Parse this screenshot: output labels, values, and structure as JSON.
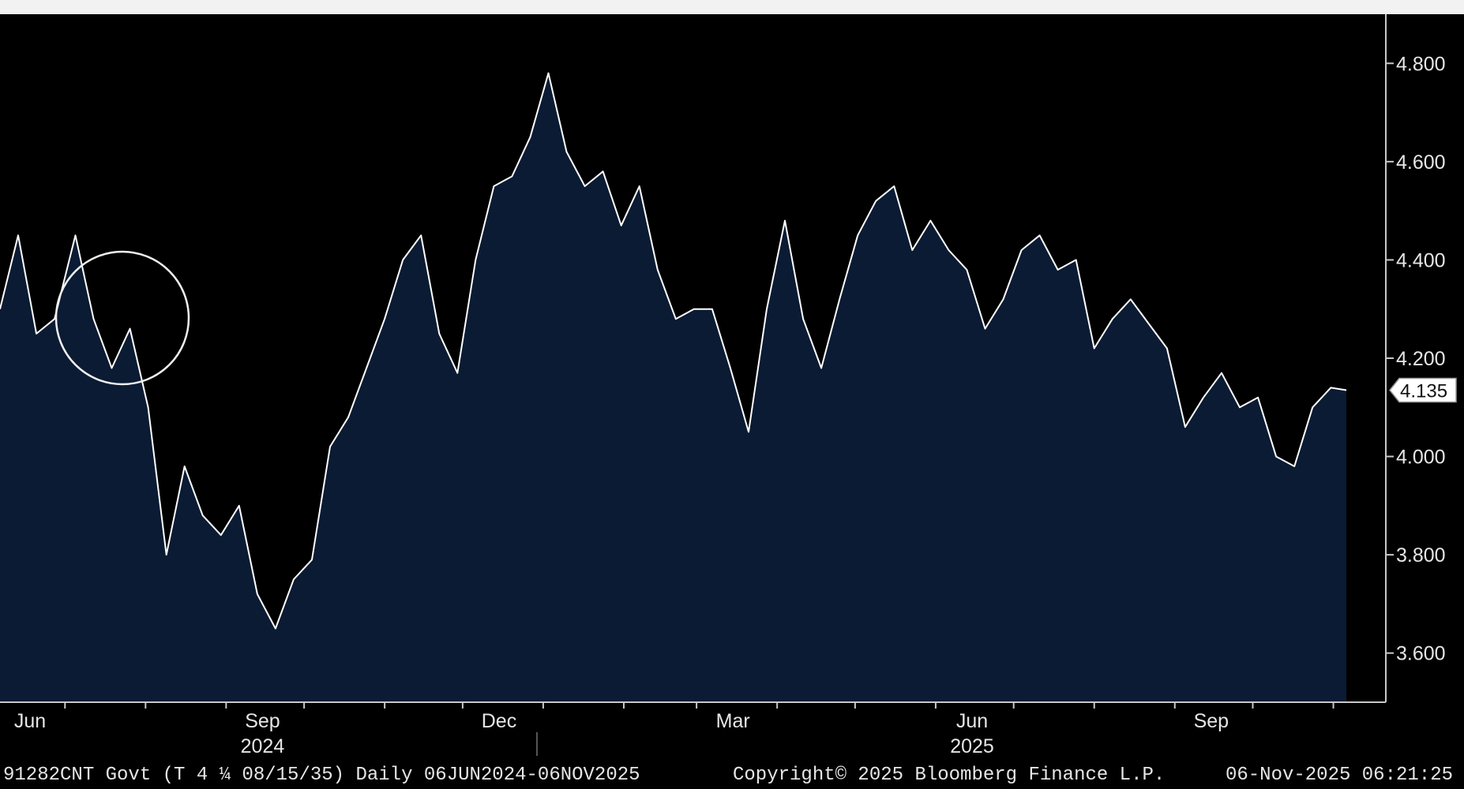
{
  "chart_data": {
    "type": "area",
    "x_start": "06JUN2024",
    "x_end": "06NOV2025",
    "ylim": [
      3.5,
      4.9
    ],
    "y_ticks": [
      "3.600",
      "3.800",
      "4.000",
      "4.200",
      "4.400",
      "4.600",
      "4.800"
    ],
    "month_ticks": [
      "Jun",
      "Sep",
      "Dec",
      "Mar",
      "Jun",
      "Sep"
    ],
    "year_labels": [
      "2024",
      "2025"
    ],
    "grid": false,
    "colors": {
      "background": "#000000",
      "area_fill": "#0b1b34",
      "line": "#ffffff",
      "text": "#e6e6e6",
      "last_label_bg": "#ffffff"
    },
    "last_value": "4.135",
    "series": [
      {
        "x": [
          "2024-06-06",
          "2024-06-13",
          "2024-06-20",
          "2024-06-27",
          "2024-07-05",
          "2024-07-12",
          "2024-07-19",
          "2024-07-26",
          "2024-08-02",
          "2024-08-09",
          "2024-08-16",
          "2024-08-23",
          "2024-08-30",
          "2024-09-06",
          "2024-09-13",
          "2024-09-20",
          "2024-09-27",
          "2024-10-04",
          "2024-10-11",
          "2024-10-18",
          "2024-10-25",
          "2024-11-01",
          "2024-11-08",
          "2024-11-15",
          "2024-11-22",
          "2024-11-29",
          "2024-12-06",
          "2024-12-13",
          "2024-12-20",
          "2024-12-27",
          "2025-01-03",
          "2025-01-10",
          "2025-01-17",
          "2025-01-24",
          "2025-01-31",
          "2025-02-07",
          "2025-02-14",
          "2025-02-21",
          "2025-02-28",
          "2025-03-07",
          "2025-03-14",
          "2025-03-21",
          "2025-03-28",
          "2025-04-04",
          "2025-04-11",
          "2025-04-18",
          "2025-04-25",
          "2025-05-02",
          "2025-05-09",
          "2025-05-16",
          "2025-05-23",
          "2025-05-30",
          "2025-06-06",
          "2025-06-13",
          "2025-06-20",
          "2025-06-27",
          "2025-07-04",
          "2025-07-11",
          "2025-07-18",
          "2025-07-25",
          "2025-08-01",
          "2025-08-08",
          "2025-08-15",
          "2025-08-22",
          "2025-08-29",
          "2025-09-05",
          "2025-09-12",
          "2025-09-19",
          "2025-09-26",
          "2025-10-03",
          "2025-10-10",
          "2025-10-17",
          "2025-10-24",
          "2025-10-31",
          "2025-11-06"
        ],
        "y": [
          4.3,
          4.45,
          4.25,
          4.28,
          4.45,
          4.28,
          4.18,
          4.26,
          4.1,
          3.8,
          3.98,
          3.88,
          3.84,
          3.9,
          3.72,
          3.65,
          3.75,
          3.79,
          4.02,
          4.08,
          4.18,
          4.28,
          4.4,
          4.45,
          4.25,
          4.17,
          4.4,
          4.55,
          4.57,
          4.65,
          4.78,
          4.62,
          4.55,
          4.58,
          4.47,
          4.55,
          4.38,
          4.28,
          4.3,
          4.3,
          4.18,
          4.05,
          4.3,
          4.48,
          4.28,
          4.18,
          4.32,
          4.45,
          4.52,
          4.55,
          4.42,
          4.48,
          4.42,
          4.38,
          4.26,
          4.32,
          4.42,
          4.45,
          4.38,
          4.4,
          4.22,
          4.28,
          4.32,
          4.27,
          4.22,
          4.06,
          4.12,
          4.17,
          4.1,
          4.12,
          4.0,
          3.98,
          4.1,
          4.14,
          4.135
        ]
      }
    ]
  },
  "annotation": {
    "shape": "circle"
  },
  "footer": {
    "security": "91282CNT Govt (T 4 ¼ 08/15/35) Daily 06JUN2024-06NOV2025",
    "copyright": "Copyright© 2025 Bloomberg Finance L.P.",
    "timestamp": "06-Nov-2025 06:21:25"
  }
}
